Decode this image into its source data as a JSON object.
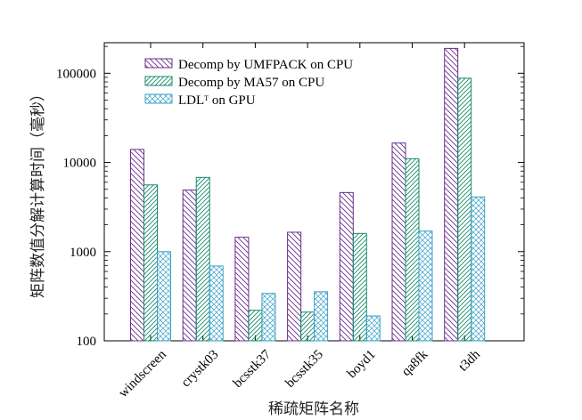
{
  "chart_data": {
    "type": "bar",
    "xlabel": "稀疏矩阵名称",
    "ylabel": "矩阵数值分解计算时间（毫秒）",
    "yscale": "log",
    "ylim": [
      100,
      220000
    ],
    "yticks": [
      100,
      1000,
      10000,
      100000
    ],
    "ytick_labels": [
      "100",
      "1000",
      "10000",
      "100000"
    ],
    "grid": false,
    "legend_position": "top-left",
    "categories": [
      "windscreen",
      "crystk03",
      "bcsstk37",
      "bcsstk35",
      "boyd1",
      "qa8fk",
      "t3dh"
    ],
    "series": [
      {
        "name": "Decomp by UMFPACK on CPU",
        "legend_label": "Decomp by UMFPACK on CPU",
        "color": "#6a2c8c",
        "values": [
          14000,
          4900,
          1450,
          1650,
          4600,
          16500,
          190000
        ]
      },
      {
        "name": "Decomp by MA57 on CPU",
        "legend_label": "Decomp by MA57 on CPU",
        "color": "#178a6a",
        "values": [
          5600,
          6800,
          220,
          210,
          1600,
          11000,
          88000
        ]
      },
      {
        "name": "LDL^T on GPU",
        "legend_label": "LDL",
        "legend_sup": "T",
        "legend_suffix": " on GPU",
        "color": "#3aa0c8",
        "values": [
          1000,
          690,
          340,
          355,
          190,
          1700,
          4100
        ]
      }
    ]
  }
}
